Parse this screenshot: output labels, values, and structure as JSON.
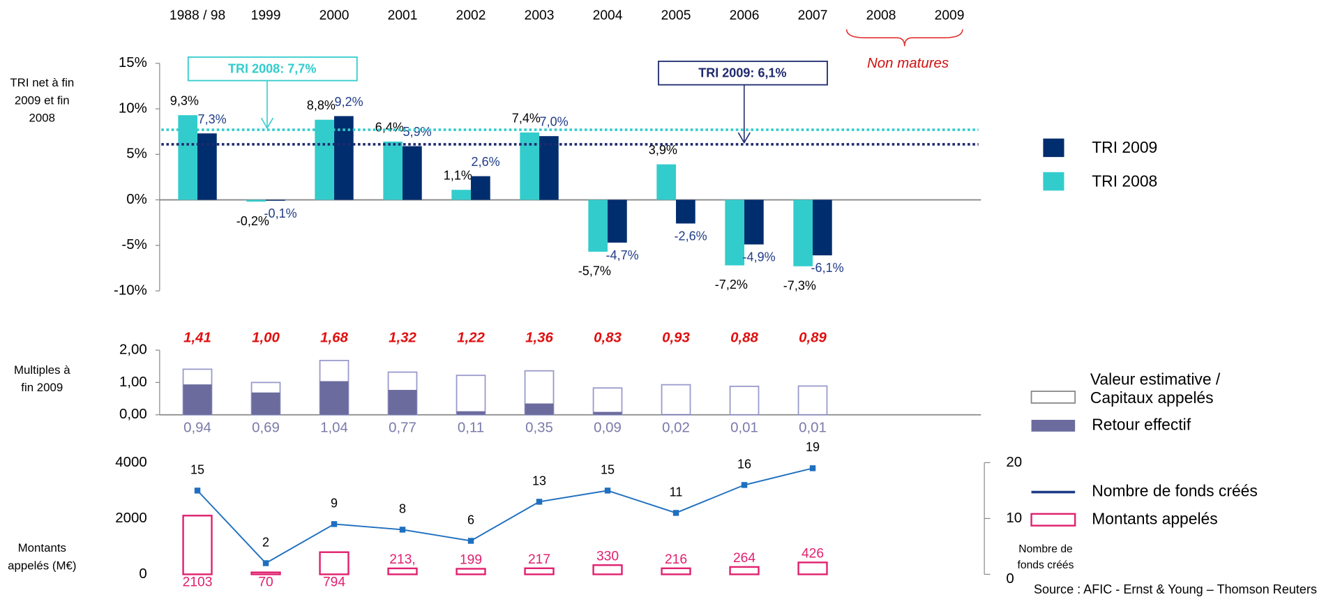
{
  "chart_data": [
    {
      "type": "bar",
      "ylabel": "TRI net à fin 2009 et fin 2008",
      "categories": [
        "1988 / 98",
        "1999",
        "2000",
        "2001",
        "2002",
        "2003",
        "2004",
        "2005",
        "2006",
        "2007",
        "2008",
        "2009"
      ],
      "series": [
        {
          "name": "TRI 2008",
          "color": "#33CCCC",
          "values": [
            9.3,
            -0.2,
            8.8,
            6.4,
            1.1,
            7.4,
            -5.7,
            3.9,
            -7.2,
            -7.3,
            null,
            null
          ],
          "value_labels": [
            "9,3%",
            "-0,2%",
            "8,8%",
            "6,4%",
            "1,1%",
            "7,4%",
            "-5,7%",
            "3,9%",
            "-7,2%",
            "-7,3%",
            null,
            null
          ]
        },
        {
          "name": "TRI 2009",
          "color": "#002D6E",
          "values": [
            7.3,
            -0.1,
            9.2,
            5.9,
            2.6,
            7.0,
            -4.7,
            -2.6,
            -4.9,
            -6.1,
            null,
            null
          ],
          "value_labels": [
            "7,3%",
            "-0,1%",
            "9,2%",
            "5,9%",
            "2,6%",
            "7,0%",
            "-4,7%",
            "-2,6%",
            "-4,9%",
            "-6,1%",
            null,
            null
          ]
        }
      ],
      "ylim": [
        -10,
        15
      ],
      "yticks": [
        {
          "value": -10,
          "label": "-10%"
        },
        {
          "value": -5,
          "label": "-5%"
        },
        {
          "value": 0,
          "label": "0%"
        },
        {
          "value": 5,
          "label": "5%"
        },
        {
          "value": 10,
          "label": "10%"
        },
        {
          "value": 15,
          "label": "15%"
        }
      ],
      "reference_lines": [
        {
          "value": 7.7,
          "label": "TRI 2008: 7,7%",
          "color": "#33CCCC"
        },
        {
          "value": 6.1,
          "label": "TRI 2009:  6,1%",
          "color": "#1F2A6E"
        }
      ],
      "annotation": "Non matures"
    },
    {
      "type": "bar",
      "ylabel": "Multiples à fin 2009",
      "series": [
        {
          "name": "Valeur estimative / Capitaux  appelés",
          "color": "#9A9ACC",
          "values": [
            1.41,
            1.0,
            1.68,
            1.32,
            1.22,
            1.36,
            0.83,
            0.93,
            0.88,
            0.89
          ],
          "value_labels": [
            "1,41",
            "1,00",
            "1,68",
            "1,32",
            "1,22",
            "1,36",
            "0,83",
            "0,93",
            "0,88",
            "0,89"
          ]
        },
        {
          "name": "Retour effectif",
          "color": "#6B6B9E",
          "values": [
            0.94,
            0.69,
            1.04,
            0.77,
            0.11,
            0.35,
            0.09,
            0.02,
            0.01,
            0.01
          ],
          "value_labels": [
            "0,94",
            "0,69",
            "1,04",
            "0,77",
            "0,11",
            "0,35",
            "0,09",
            "0,02",
            "0,01",
            "0,01"
          ]
        }
      ],
      "ylim": [
        0,
        2
      ],
      "yticks": [
        {
          "value": 0,
          "label": "0,00"
        },
        {
          "value": 1,
          "label": "1,00"
        },
        {
          "value": 2,
          "label": "2,00"
        }
      ]
    },
    {
      "type": "bar",
      "ylabel": "Montants appelés (M€)",
      "y2label": "Nombre de fonds créés",
      "series": [
        {
          "name": "Montants appelés",
          "color": "#E0206E",
          "values": [
            2103,
            70,
            794,
            213,
            199,
            217,
            330,
            216,
            264,
            426
          ],
          "value_labels": [
            "2103",
            "70",
            "794",
            "213,",
            "199",
            "217",
            "330",
            "216",
            "264",
            "426"
          ]
        },
        {
          "name": "Nombre de fonds créés",
          "color": "#1F6FBF",
          "legend_color": "#1F3C88",
          "axis": "y2",
          "values": [
            15,
            2,
            9,
            8,
            6,
            13,
            15,
            11,
            16,
            19
          ]
        }
      ],
      "ylim": [
        0,
        4000
      ],
      "yticks": [
        0,
        2000,
        4000
      ],
      "y2lim": [
        0,
        20
      ],
      "y2ticks": [
        0,
        10,
        20
      ],
      "source": "Source : AFIC - Ernst & Young – Thomson Reuters"
    }
  ]
}
